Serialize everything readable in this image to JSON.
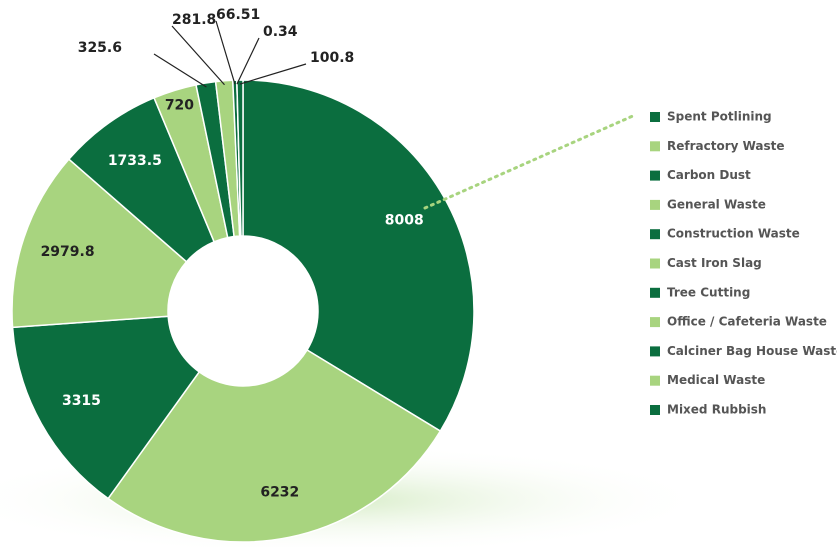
{
  "chart_data": {
    "type": "donut",
    "categories": [
      "Spent Potlining",
      "Refractory Waste",
      "Carbon Dust",
      "General Waste",
      "Construction Waste",
      "Cast Iron Slag",
      "Tree Cutting",
      "Office / Cafeteria Waste",
      "Calciner Bag House Waste",
      "Medical Waste",
      "Mixed Rubbish"
    ],
    "values": [
      8008,
      6232,
      3315,
      2979.8,
      1733.5,
      720,
      325.6,
      281.8,
      66.51,
      0.34,
      100.8
    ],
    "colors": [
      "#0b6e3f",
      "#a8d47f",
      "#0b6e3f",
      "#a8d47f",
      "#0b6e3f",
      "#a8d47f",
      "#0b6e3f",
      "#a8d47f",
      "#0b6e3f",
      "#a8d47f",
      "#0b6e3f"
    ],
    "legend": "right"
  }
}
